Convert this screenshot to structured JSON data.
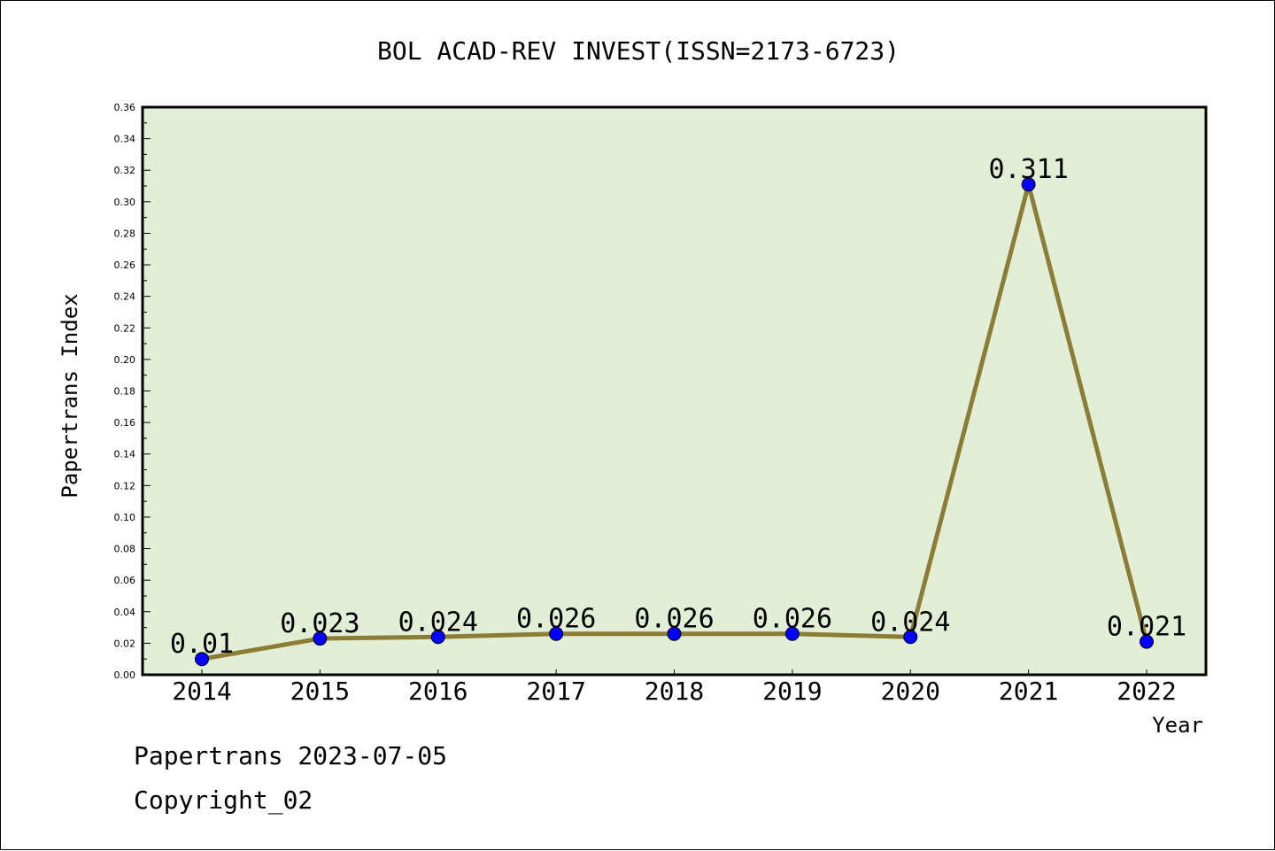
{
  "chart_data": {
    "type": "line",
    "title": "BOL ACAD-REV INVEST(ISSN=2173-6723)",
    "xlabel": "Year",
    "ylabel": "Papertrans Index",
    "categories": [
      "2014",
      "2015",
      "2016",
      "2017",
      "2018",
      "2019",
      "2020",
      "2021",
      "2022"
    ],
    "values": [
      0.01,
      0.023,
      0.024,
      0.026,
      0.026,
      0.026,
      0.024,
      0.311,
      0.021
    ],
    "value_labels": [
      "0.01",
      "0.023",
      "0.024",
      "0.026",
      "0.026",
      "0.026",
      "0.024",
      "0.311",
      "0.021"
    ],
    "ylim": [
      0,
      0.36
    ],
    "yticks": [
      "0.00",
      "0.02",
      "0.04",
      "0.06",
      "0.08",
      "0.10",
      "0.12",
      "0.14",
      "0.16",
      "0.18",
      "0.20",
      "0.22",
      "0.24",
      "0.26",
      "0.28",
      "0.30",
      "0.32",
      "0.34",
      "0.36"
    ],
    "grid": false,
    "legend": "none",
    "colors": {
      "plot_background": "#e2efd6",
      "line": "#8b7d36",
      "marker": "#0000ff"
    }
  },
  "footer": {
    "line1": "Papertrans 2023-07-05",
    "line2": "Copyright_02"
  }
}
